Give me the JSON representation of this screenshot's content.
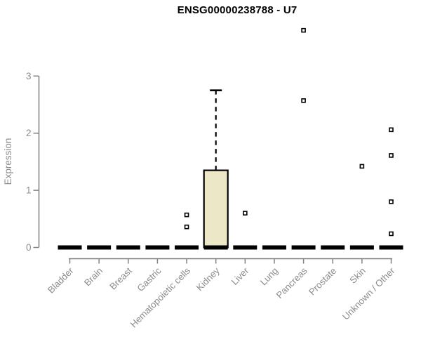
{
  "chart_data": {
    "type": "boxplot",
    "title": "ENSG00000238788 - U7",
    "ylabel": "Expression",
    "xlabel": "",
    "ylim": [
      0,
      3
    ],
    "yticks": [
      0,
      1,
      2,
      3
    ],
    "grid": false,
    "legend": "none",
    "box_fill_color": "#ECE7C6",
    "box_border_color": "#000000",
    "median_color": "#000000",
    "axis_color": "#808080",
    "label_color": "#8C8C8C",
    "outlier_marker": "open-square",
    "categories": [
      "Bladder",
      "Brain",
      "Breast",
      "Gastric",
      "Hematopoietic cells",
      "Kidney",
      "Liver",
      "Lung",
      "Pancreas",
      "Prostate",
      "Skin",
      "Unknown / Other"
    ],
    "series": [
      {
        "category": "Bladder",
        "whisker_low": 0,
        "q1": 0,
        "median": 0,
        "q3": 0,
        "whisker_high": 0,
        "outliers": []
      },
      {
        "category": "Brain",
        "whisker_low": 0,
        "q1": 0,
        "median": 0,
        "q3": 0,
        "whisker_high": 0,
        "outliers": []
      },
      {
        "category": "Breast",
        "whisker_low": 0,
        "q1": 0,
        "median": 0,
        "q3": 0,
        "whisker_high": 0,
        "outliers": []
      },
      {
        "category": "Gastric",
        "whisker_low": 0,
        "q1": 0,
        "median": 0,
        "q3": 0,
        "whisker_high": 0,
        "outliers": []
      },
      {
        "category": "Hematopoietic cells",
        "whisker_low": 0,
        "q1": 0,
        "median": 0,
        "q3": 0,
        "whisker_high": 0,
        "outliers": [
          0.57,
          0.36
        ]
      },
      {
        "category": "Kidney",
        "whisker_low": 0,
        "q1": 0,
        "median": 0,
        "q3": 1.35,
        "whisker_high": 2.75,
        "outliers": []
      },
      {
        "category": "Liver",
        "whisker_low": 0,
        "q1": 0,
        "median": 0,
        "q3": 0,
        "whisker_high": 0,
        "outliers": [
          0.6
        ]
      },
      {
        "category": "Lung",
        "whisker_low": 0,
        "q1": 0,
        "median": 0,
        "q3": 0,
        "whisker_high": 0,
        "outliers": []
      },
      {
        "category": "Pancreas",
        "whisker_low": 0,
        "q1": 0,
        "median": 0,
        "q3": 0,
        "whisker_high": 0,
        "outliers": [
          3.8,
          2.57
        ]
      },
      {
        "category": "Prostate",
        "whisker_low": 0,
        "q1": 0,
        "median": 0,
        "q3": 0,
        "whisker_high": 0,
        "outliers": []
      },
      {
        "category": "Skin",
        "whisker_low": 0,
        "q1": 0,
        "median": 0,
        "q3": 0,
        "whisker_high": 0,
        "outliers": [
          1.42
        ]
      },
      {
        "category": "Unknown / Other",
        "whisker_low": 0,
        "q1": 0,
        "median": 0,
        "q3": 0,
        "whisker_high": 0,
        "outliers": [
          2.06,
          1.61,
          0.8,
          0.24
        ]
      }
    ]
  }
}
